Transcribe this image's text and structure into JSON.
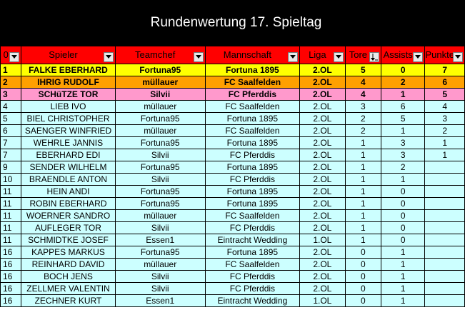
{
  "title": "Rundenwertung 17. Spieltag",
  "colors": {
    "title_bg": "#000000",
    "header_bg": "#ff0000",
    "first": "#ffff00",
    "second": "#ffa000",
    "third": "#ff99cc",
    "rest": "#ccffff"
  },
  "headers": {
    "rank": "0",
    "player": "Spieler",
    "teamchef": "Teamchef",
    "team": "Mannschaft",
    "league": "Liga",
    "goals": "Tore",
    "assists": "Assists",
    "points": "Punkte"
  },
  "rows": [
    {
      "rank": "1",
      "player": "FALKE EBERHARD",
      "teamchef": "Fortuna95",
      "team": "Fortuna 1895",
      "league": "2.OL",
      "goals": "5",
      "assists": "0",
      "points": "7"
    },
    {
      "rank": "2",
      "player": "IHRIG RUDOLF",
      "teamchef": "müllauer",
      "team": "FC Saalfelden",
      "league": "2.OL",
      "goals": "4",
      "assists": "2",
      "points": "6"
    },
    {
      "rank": "3",
      "player": "SCHüTZE TOR",
      "teamchef": "Silvii",
      "team": "FC Pferddis",
      "league": "2.OL",
      "goals": "4",
      "assists": "1",
      "points": "5"
    },
    {
      "rank": "4",
      "player": "LIEB IVO",
      "teamchef": "müllauer",
      "team": "FC Saalfelden",
      "league": "2.OL",
      "goals": "3",
      "assists": "6",
      "points": "4"
    },
    {
      "rank": "5",
      "player": "BIEL CHRISTOPHER",
      "teamchef": "Fortuna95",
      "team": "Fortuna 1895",
      "league": "2.OL",
      "goals": "2",
      "assists": "5",
      "points": "3"
    },
    {
      "rank": "6",
      "player": "SAENGER WINFRIED",
      "teamchef": "müllauer",
      "team": "FC Saalfelden",
      "league": "2.OL",
      "goals": "2",
      "assists": "1",
      "points": "2"
    },
    {
      "rank": "7",
      "player": "WEHRLE JANNIS",
      "teamchef": "Fortuna95",
      "team": "Fortuna 1895",
      "league": "2.OL",
      "goals": "1",
      "assists": "3",
      "points": "1"
    },
    {
      "rank": "7",
      "player": "EBERHARD EDI",
      "teamchef": "Silvii",
      "team": "FC Pferddis",
      "league": "2.OL",
      "goals": "1",
      "assists": "3",
      "points": "1"
    },
    {
      "rank": "9",
      "player": "SENDER WILHELM",
      "teamchef": "Fortuna95",
      "team": "Fortuna 1895",
      "league": "2.OL",
      "goals": "1",
      "assists": "2",
      "points": ""
    },
    {
      "rank": "10",
      "player": "BRAENDLE ANTON",
      "teamchef": "Silvii",
      "team": "FC Pferddis",
      "league": "2.OL",
      "goals": "1",
      "assists": "1",
      "points": ""
    },
    {
      "rank": "11",
      "player": "HEIN ANDI",
      "teamchef": "Fortuna95",
      "team": "Fortuna 1895",
      "league": "2.OL",
      "goals": "1",
      "assists": "0",
      "points": ""
    },
    {
      "rank": "11",
      "player": "ROBIN EBERHARD",
      "teamchef": "Fortuna95",
      "team": "Fortuna 1895",
      "league": "2.OL",
      "goals": "1",
      "assists": "0",
      "points": ""
    },
    {
      "rank": "11",
      "player": "WOERNER SANDRO",
      "teamchef": "müllauer",
      "team": "FC Saalfelden",
      "league": "2.OL",
      "goals": "1",
      "assists": "0",
      "points": ""
    },
    {
      "rank": "11",
      "player": "AUFLEGER TOR",
      "teamchef": "Silvii",
      "team": "FC Pferddis",
      "league": "2.OL",
      "goals": "1",
      "assists": "0",
      "points": ""
    },
    {
      "rank": "11",
      "player": "SCHMIDTKE JOSEF",
      "teamchef": "Essen1",
      "team": "Eintracht Wedding",
      "league": "1.OL",
      "goals": "1",
      "assists": "0",
      "points": ""
    },
    {
      "rank": "16",
      "player": "KAPPES MARKUS",
      "teamchef": "Fortuna95",
      "team": "Fortuna 1895",
      "league": "2.OL",
      "goals": "0",
      "assists": "1",
      "points": ""
    },
    {
      "rank": "16",
      "player": "REINHARD DAVID",
      "teamchef": "müllauer",
      "team": "FC Saalfelden",
      "league": "2.OL",
      "goals": "0",
      "assists": "1",
      "points": ""
    },
    {
      "rank": "16",
      "player": "BOCH JENS",
      "teamchef": "Silvii",
      "team": "FC Pferddis",
      "league": "2.OL",
      "goals": "0",
      "assists": "1",
      "points": ""
    },
    {
      "rank": "16",
      "player": "ZELLMER VALENTIN",
      "teamchef": "Silvii",
      "team": "FC Pferddis",
      "league": "2.OL",
      "goals": "0",
      "assists": "1",
      "points": ""
    },
    {
      "rank": "16",
      "player": "ZECHNER KURT",
      "teamchef": "Essen1",
      "team": "Eintracht Wedding",
      "league": "1.OL",
      "goals": "0",
      "assists": "1",
      "points": ""
    }
  ]
}
